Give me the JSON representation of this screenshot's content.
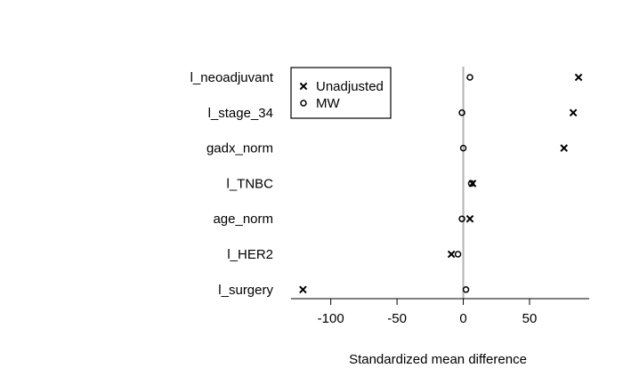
{
  "chart_data": {
    "type": "scatter",
    "orientation": "dot-plot",
    "title": "",
    "xlabel": "Standardized mean difference",
    "ylabel": "",
    "xlim": [
      -130,
      95
    ],
    "x_ticks": [
      -100,
      -50,
      0,
      50
    ],
    "x_tick_labels": [
      "-100",
      "-50",
      "0",
      "50"
    ],
    "reference_line": 0,
    "reference_line_color": "#b3b3b3",
    "categories": [
      "l_neoadjuvant",
      "l_stage_34",
      "gadx_norm",
      "l_TNBC",
      "age_norm",
      "l_HER2",
      "l_surgery"
    ],
    "series": [
      {
        "name": "Unadjusted",
        "marker": "x",
        "values": [
          87,
          83,
          76,
          7,
          5,
          -9,
          -121
        ]
      },
      {
        "name": "MW",
        "marker": "o",
        "values": [
          5,
          -1,
          0,
          6,
          -1,
          -4,
          2
        ]
      }
    ],
    "legend": {
      "placement": "top-left",
      "entries": [
        "Unadjusted",
        "MW"
      ]
    },
    "grid": false
  }
}
